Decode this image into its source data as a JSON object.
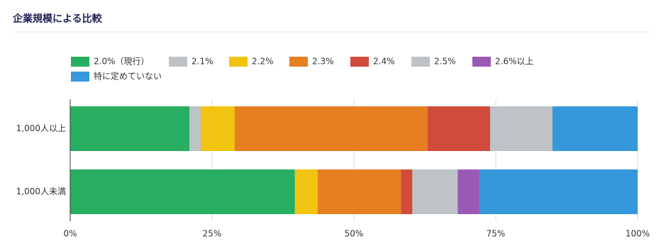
{
  "chart_data": {
    "type": "stacked-bar-horizontal",
    "title": "企業規模による比較",
    "categories": [
      "1,000人以上",
      "1,000人未満"
    ],
    "series": [
      {
        "name": "2.0%（現行）",
        "color": "#27ae60",
        "values": [
          21.0,
          39.6
        ]
      },
      {
        "name": "2.1%",
        "color": "#bdc3c7",
        "values": [
          2.0,
          0
        ]
      },
      {
        "name": "2.2%",
        "color": "#f1c40f",
        "values": [
          6.0,
          4.0
        ]
      },
      {
        "name": "2.3%",
        "color": "#e67e22",
        "values": [
          34.0,
          14.7
        ]
      },
      {
        "name": "2.4%",
        "color": "#d14b3d",
        "values": [
          11.0,
          2.0
        ]
      },
      {
        "name": "2.5%",
        "color": "#bdc3c7",
        "values": [
          11.0,
          8.0
        ]
      },
      {
        "name": "2.6%以上",
        "color": "#9b59b6",
        "values": [
          0,
          3.9
        ]
      },
      {
        "name": "特に定めていない",
        "color": "#3498db",
        "values": [
          15.0,
          27.8
        ]
      }
    ],
    "xlim": [
      0,
      100
    ],
    "xticks": [
      {
        "value": 0,
        "label": "0%"
      },
      {
        "value": 25,
        "label": "25%"
      },
      {
        "value": 50,
        "label": "50%"
      },
      {
        "value": 75,
        "label": "75%"
      },
      {
        "value": 100,
        "label": "100%"
      }
    ],
    "grid": true
  }
}
